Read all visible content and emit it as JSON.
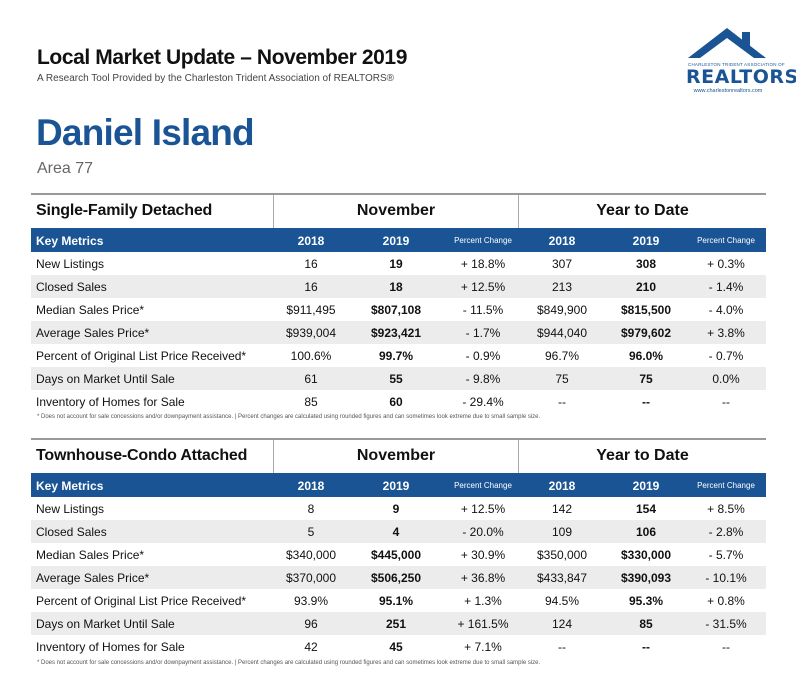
{
  "header": {
    "title": "Local Market Update – November 2019",
    "subtitle": "A Research Tool Provided by the Charleston Trident Association of REALTORS®"
  },
  "logo": {
    "assoc_text": "CHARLESTON TRIDENT ASSOCIATION OF",
    "brand": "REALTORS",
    "registered": "®",
    "url": "www.charlestonrealtors.com",
    "icon": "house-roof-icon",
    "color": "#1a5494"
  },
  "area": {
    "name": "Daniel Island",
    "code": "Area 77"
  },
  "column_headers": {
    "key_metrics": "Key Metrics",
    "y1": "2018",
    "y2": "2019",
    "pct": "Percent Change",
    "month_group": "November",
    "ytd_group": "Year to Date"
  },
  "sections": [
    {
      "title": "Single-Family Detached",
      "rows": [
        {
          "label": "New Listings",
          "m18": "16",
          "m19": "19",
          "mpc": "+ 18.8%",
          "y18": "307",
          "y19": "308",
          "ypc": "+ 0.3%"
        },
        {
          "label": "Closed Sales",
          "m18": "16",
          "m19": "18",
          "mpc": "+ 12.5%",
          "y18": "213",
          "y19": "210",
          "ypc": "- 1.4%"
        },
        {
          "label": "Median Sales Price*",
          "m18": "$911,495",
          "m19": "$807,108",
          "mpc": "- 11.5%",
          "y18": "$849,900",
          "y19": "$815,500",
          "ypc": "- 4.0%"
        },
        {
          "label": "Average Sales Price*",
          "m18": "$939,004",
          "m19": "$923,421",
          "mpc": "- 1.7%",
          "y18": "$944,040",
          "y19": "$979,602",
          "ypc": "+ 3.8%"
        },
        {
          "label": "Percent of Original List Price Received*",
          "m18": "100.6%",
          "m19": "99.7%",
          "mpc": "- 0.9%",
          "y18": "96.7%",
          "y19": "96.0%",
          "ypc": "- 0.7%"
        },
        {
          "label": "Days on Market Until Sale",
          "m18": "61",
          "m19": "55",
          "mpc": "- 9.8%",
          "y18": "75",
          "y19": "75",
          "ypc": "0.0%"
        },
        {
          "label": "Inventory of Homes for Sale",
          "m18": "85",
          "m19": "60",
          "mpc": "- 29.4%",
          "y18": "--",
          "y19": "--",
          "ypc": "--"
        }
      ]
    },
    {
      "title": "Townhouse-Condo Attached",
      "rows": [
        {
          "label": "New Listings",
          "m18": "8",
          "m19": "9",
          "mpc": "+ 12.5%",
          "y18": "142",
          "y19": "154",
          "ypc": "+ 8.5%"
        },
        {
          "label": "Closed Sales",
          "m18": "5",
          "m19": "4",
          "mpc": "- 20.0%",
          "y18": "109",
          "y19": "106",
          "ypc": "- 2.8%"
        },
        {
          "label": "Median Sales Price*",
          "m18": "$340,000",
          "m19": "$445,000",
          "mpc": "+ 30.9%",
          "y18": "$350,000",
          "y19": "$330,000",
          "ypc": "- 5.7%"
        },
        {
          "label": "Average Sales Price*",
          "m18": "$370,000",
          "m19": "$506,250",
          "mpc": "+ 36.8%",
          "y18": "$433,847",
          "y19": "$390,093",
          "ypc": "- 10.1%"
        },
        {
          "label": "Percent of Original List Price Received*",
          "m18": "93.9%",
          "m19": "95.1%",
          "mpc": "+ 1.3%",
          "y18": "94.5%",
          "y19": "95.3%",
          "ypc": "+ 0.8%"
        },
        {
          "label": "Days on Market Until Sale",
          "m18": "96",
          "m19": "251",
          "mpc": "+ 161.5%",
          "y18": "124",
          "y19": "85",
          "ypc": "- 31.5%"
        },
        {
          "label": "Inventory of Homes for Sale",
          "m18": "42",
          "m19": "45",
          "mpc": "+ 7.1%",
          "y18": "--",
          "y19": "--",
          "ypc": "--"
        }
      ]
    }
  ],
  "footnote": "* Does not account for sale concessions and/or downpayment assistance.  |  Percent changes are calculated using rounded figures and can sometimes look extreme due to small sample size."
}
